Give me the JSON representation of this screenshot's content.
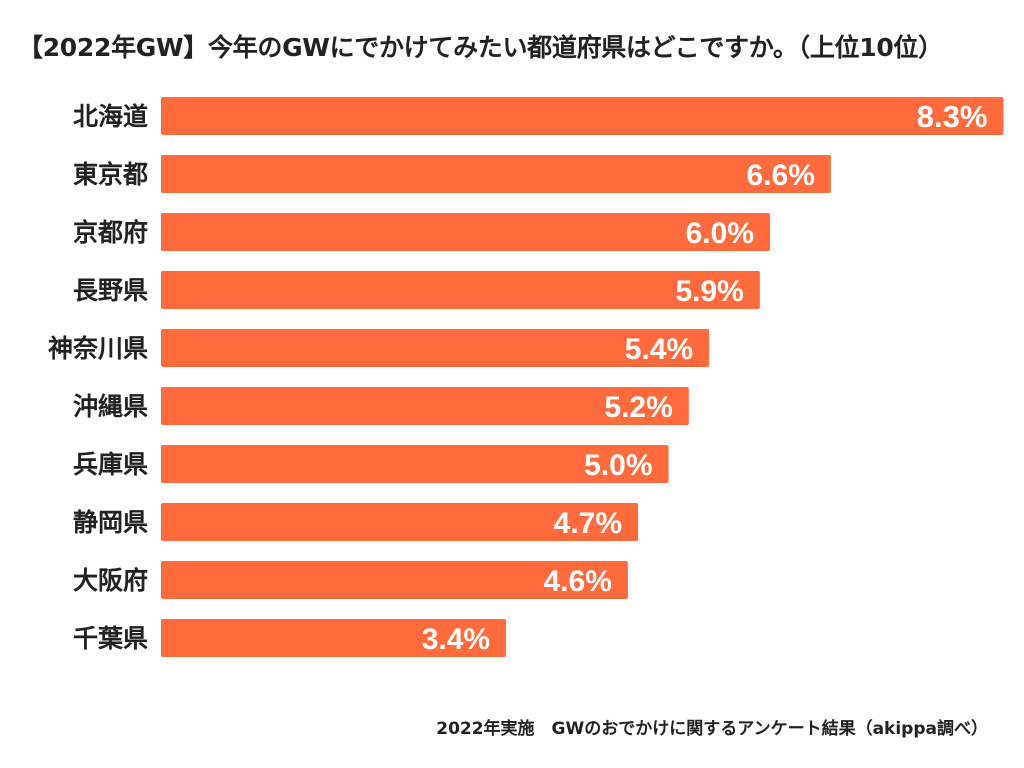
{
  "chart_data": {
    "type": "bar",
    "orientation": "horizontal",
    "title": "【2022年GW】今年のGWにでかけてみたい都道府県はどこですか。（上位10位）",
    "categories": [
      "北海道",
      "東京都",
      "京都府",
      "長野県",
      "神奈川県",
      "沖縄県",
      "兵庫県",
      "静岡県",
      "大阪府",
      "千葉県"
    ],
    "values": [
      8.3,
      6.6,
      6.0,
      5.9,
      5.4,
      5.2,
      5.0,
      4.7,
      4.6,
      3.4
    ],
    "value_labels": [
      "8.3%",
      "6.6%",
      "6.0%",
      "5.9%",
      "5.4%",
      "5.2%",
      "5.0%",
      "4.7%",
      "4.6%",
      "3.4%"
    ],
    "xlabel": "",
    "ylabel": "",
    "grid": false,
    "bar_color": "#FF6B3D",
    "label_color": "#FFFFFF"
  },
  "footnote": "2022年実施　GWのおでかけに関するアンケート結果（akippa調べ）"
}
